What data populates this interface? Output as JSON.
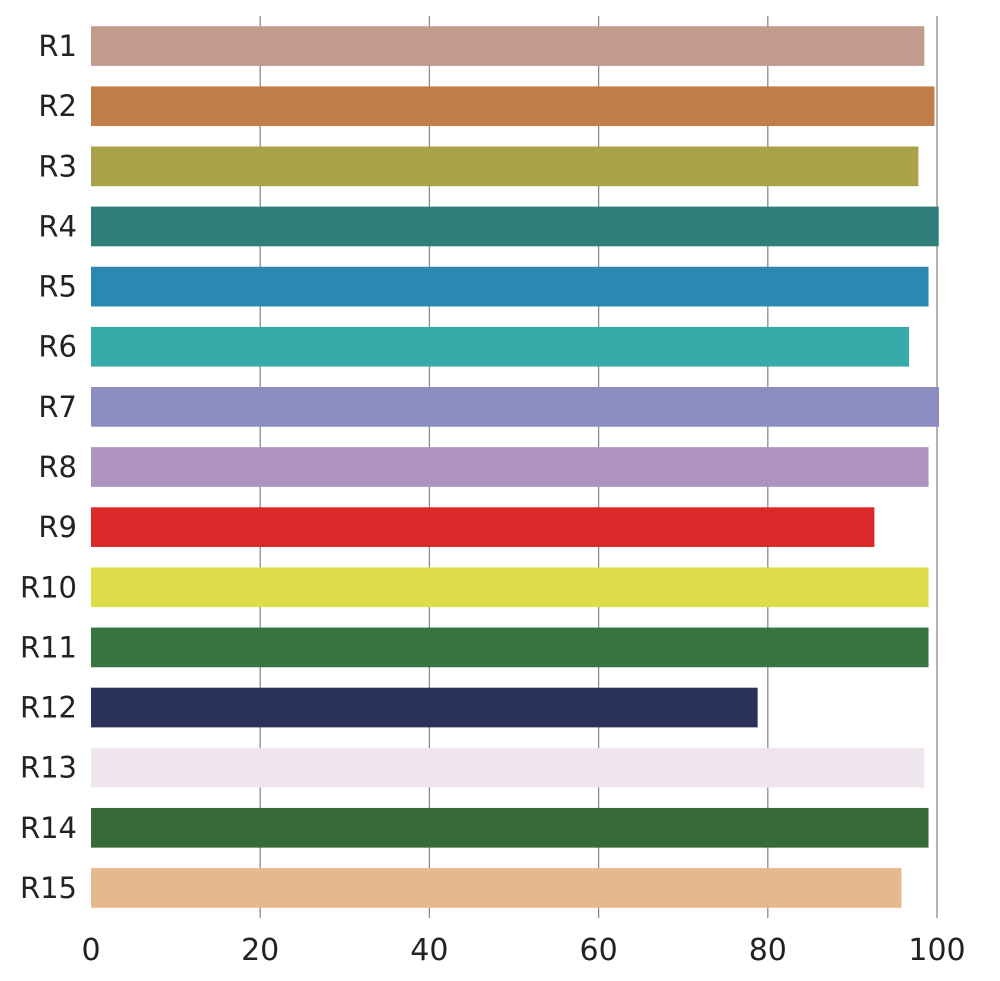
{
  "chart_data": {
    "type": "bar",
    "orientation": "horizontal",
    "categories": [
      "R1",
      "R2",
      "R3",
      "R4",
      "R5",
      "R6",
      "R7",
      "R8",
      "R9",
      "R10",
      "R11",
      "R12",
      "R13",
      "R14",
      "R15"
    ],
    "values": [
      98.5,
      99.7,
      97.8,
      100.2,
      99.0,
      96.7,
      100.4,
      99.0,
      92.6,
      99.0,
      99.0,
      78.8,
      98.5,
      99.0,
      95.8
    ],
    "colors": [
      "#c29b8f",
      "#c07f48",
      "#a9a249",
      "#2f7e7a",
      "#2b88b0",
      "#38aaaa",
      "#8b8cc1",
      "#ae92bf",
      "#d92a29",
      "#dddd49",
      "#367440",
      "#2b3259",
      "#efe5ef",
      "#386939",
      "#e6b88f"
    ],
    "xlim": [
      0,
      100
    ],
    "x_ticks": [
      "0",
      "20",
      "40",
      "60",
      "80",
      "100"
    ],
    "grid": true,
    "title": "",
    "xlabel": "",
    "ylabel": ""
  }
}
